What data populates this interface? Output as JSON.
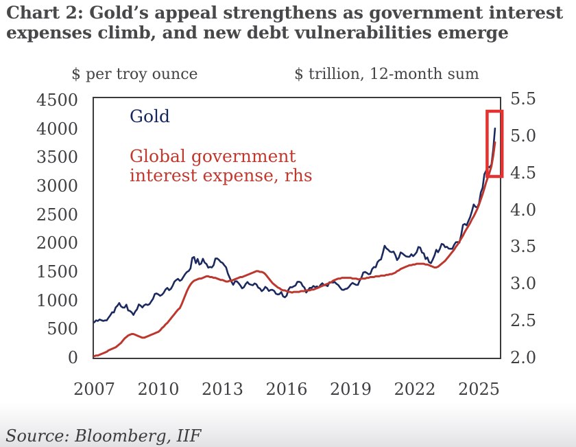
{
  "title": {
    "line1": "Chart 2: Gold’s appeal strengthens as government interest",
    "line2": "expenses climb, and new debt vulnerabilities emerge"
  },
  "axis_headers": {
    "left": "$ per troy ounce",
    "right": "$ trillion, 12-month sum"
  },
  "legend": {
    "gold_label": "Gold",
    "interest_label_line1": "Global government",
    "interest_label_line2": "interest expense, rhs"
  },
  "source_text": "Source: Bloomberg, IIF",
  "colors": {
    "gold_line": "#1b2a5e",
    "interest_line": "#bc382f",
    "highlight_box": "#e23330",
    "plot_border": "#3a3a3c",
    "text_dark": "#48484a",
    "tick_text": "#3f3f42"
  },
  "chart_data": {
    "type": "line",
    "title": "Chart 2: Gold’s appeal strengthens as government interest expenses climb, and new debt vulnerabilities emerge",
    "x_start_year": 2007.0,
    "x_step_years": 0.0833333,
    "x_ticks": [
      2007,
      2010,
      2013,
      2016,
      2019,
      2022,
      2025
    ],
    "x_range": [
      2006.95,
      2026.15
    ],
    "left_axis": {
      "label": "$ per troy ounce",
      "ticks": [
        4500,
        4000,
        3500,
        3000,
        2500,
        2000,
        1500,
        1000,
        500,
        0
      ],
      "range": [
        0,
        4500
      ]
    },
    "right_axis": {
      "label": "$ trillion, 12-month sum",
      "ticks": [
        5.5,
        5.0,
        4.5,
        4.0,
        3.5,
        3.0,
        2.5,
        2.0
      ],
      "range": [
        2.0,
        5.5
      ]
    },
    "legend_position": "top-left-inside",
    "grid": false,
    "series": [
      {
        "name": "Gold",
        "axis": "left",
        "color": "#1b2a5e",
        "values": [
          631,
          665,
          655,
          680,
          667,
          655,
          665,
          665,
          713,
          755,
          806,
          803,
          890,
          922,
          968,
          910,
          889,
          889,
          940,
          839,
          830,
          807,
          760,
          820,
          858,
          943,
          924,
          890,
          929,
          946,
          934,
          949,
          997,
          1043,
          1127,
          1135,
          1118,
          1095,
          1113,
          1149,
          1205,
          1233,
          1193,
          1216,
          1271,
          1342,
          1370,
          1391,
          1356,
          1373,
          1424,
          1474,
          1511,
          1529,
          1573,
          1756,
          1772,
          1666,
          1739,
          1640,
          1656,
          1743,
          1674,
          1650,
          1586,
          1600,
          1590,
          1630,
          1745,
          1747,
          1722,
          1685,
          1671,
          1628,
          1593,
          1485,
          1414,
          1343,
          1287,
          1347,
          1348,
          1316,
          1276,
          1225,
          1244,
          1301,
          1336,
          1298,
          1288,
          1279,
          1311,
          1296,
          1238,
          1222,
          1176,
          1201,
          1251,
          1227,
          1179,
          1198,
          1199,
          1181,
          1130,
          1118,
          1125,
          1159,
          1086,
          1068,
          1097,
          1200,
          1246,
          1242,
          1260,
          1276,
          1337,
          1340,
          1327,
          1267,
          1238,
          1152,
          1192,
          1234,
          1231,
          1266,
          1246,
          1260,
          1237,
          1283,
          1314,
          1280,
          1282,
          1264,
          1331,
          1330,
          1325,
          1334,
          1303,
          1282,
          1238,
          1201,
          1198,
          1215,
          1221,
          1250,
          1292,
          1320,
          1301,
          1286,
          1284,
          1359,
          1413,
          1500,
          1511,
          1495,
          1471,
          1479,
          1561,
          1597,
          1592,
          1683,
          1716,
          1732,
          1843,
          1969,
          1922,
          1900,
          1866,
          1858,
          1867,
          1808,
          1718,
          1762,
          1853,
          1835,
          1807,
          1784,
          1777,
          1777,
          1820,
          1787,
          1817,
          1856,
          1948,
          1937,
          1850,
          1837,
          1736,
          1765,
          1681,
          1664,
          1726,
          1798,
          1898,
          1855,
          1913,
          2000,
          1992,
          1943,
          1951,
          1919,
          1916,
          1916,
          1984,
          2030,
          2034,
          2023,
          2160,
          2334,
          2351,
          2327,
          2398,
          2470,
          2570,
          2690,
          2650,
          2640,
          2710,
          2900,
          2985,
          3220,
          3280,
          3350,
          3340,
          3390,
          3650,
          4020
        ]
      },
      {
        "name": "Global government interest expense, rhs",
        "axis": "right",
        "color": "#bc382f",
        "values": [
          2.03,
          2.04,
          2.04,
          2.05,
          2.06,
          2.07,
          2.08,
          2.09,
          2.11,
          2.12,
          2.13,
          2.14,
          2.15,
          2.17,
          2.19,
          2.21,
          2.24,
          2.27,
          2.29,
          2.31,
          2.32,
          2.33,
          2.33,
          2.32,
          2.31,
          2.3,
          2.29,
          2.28,
          2.28,
          2.29,
          2.3,
          2.31,
          2.32,
          2.33,
          2.34,
          2.35,
          2.36,
          2.38,
          2.41,
          2.43,
          2.46,
          2.48,
          2.51,
          2.54,
          2.57,
          2.6,
          2.63,
          2.66,
          2.68,
          2.73,
          2.79,
          2.85,
          2.91,
          2.96,
          3.0,
          3.03,
          3.05,
          3.06,
          3.07,
          3.08,
          3.08,
          3.09,
          3.1,
          3.11,
          3.11,
          3.1,
          3.1,
          3.09,
          3.09,
          3.08,
          3.07,
          3.06,
          3.06,
          3.05,
          3.04,
          3.04,
          3.05,
          3.05,
          3.06,
          3.07,
          3.08,
          3.09,
          3.1,
          3.1,
          3.11,
          3.12,
          3.13,
          3.14,
          3.15,
          3.16,
          3.17,
          3.18,
          3.18,
          3.17,
          3.17,
          3.16,
          3.14,
          3.11,
          3.08,
          3.05,
          3.02,
          3.0,
          2.98,
          2.96,
          2.95,
          2.93,
          2.92,
          2.92,
          2.91,
          2.9,
          2.9,
          2.89,
          2.9,
          2.9,
          2.9,
          2.9,
          2.91,
          2.91,
          2.91,
          2.92,
          2.92,
          2.92,
          2.93,
          2.93,
          2.94,
          2.95,
          2.96,
          2.97,
          2.98,
          2.99,
          3.0,
          3.01,
          3.02,
          3.03,
          3.05,
          3.06,
          3.07,
          3.08,
          3.08,
          3.09,
          3.09,
          3.09,
          3.09,
          3.09,
          3.09,
          3.08,
          3.08,
          3.08,
          3.07,
          3.07,
          3.08,
          3.08,
          3.08,
          3.09,
          3.09,
          3.1,
          3.1,
          3.1,
          3.11,
          3.11,
          3.11,
          3.12,
          3.12,
          3.12,
          3.13,
          3.13,
          3.14,
          3.14,
          3.15,
          3.16,
          3.18,
          3.19,
          3.21,
          3.22,
          3.23,
          3.24,
          3.25,
          3.26,
          3.26,
          3.27,
          3.27,
          3.28,
          3.28,
          3.28,
          3.28,
          3.28,
          3.27,
          3.27,
          3.26,
          3.25,
          3.24,
          3.23,
          3.23,
          3.24,
          3.26,
          3.28,
          3.3,
          3.32,
          3.35,
          3.38,
          3.41,
          3.44,
          3.47,
          3.51,
          3.54,
          3.58,
          3.62,
          3.66,
          3.71,
          3.75,
          3.79,
          3.83,
          3.88,
          3.92,
          3.97,
          4.02,
          4.08,
          4.15,
          4.22,
          4.3,
          4.38,
          4.45,
          4.52,
          4.6,
          4.74,
          4.92
        ]
      }
    ],
    "annotations": [
      {
        "type": "highlight-box",
        "x0_year": 2025.38,
        "x1_year": 2026.08,
        "lhs_value_low": 3180,
        "lhs_value_high": 4320,
        "color": "#e23330"
      }
    ]
  }
}
